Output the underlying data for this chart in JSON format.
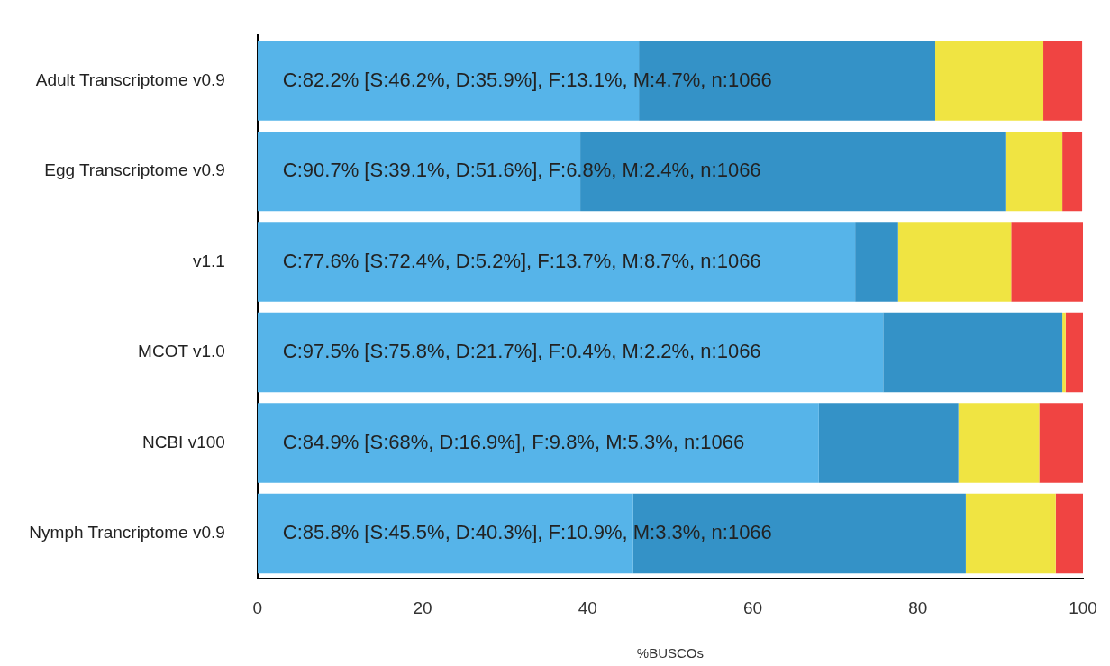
{
  "chart_data": {
    "type": "bar",
    "orientation": "horizontal",
    "stacked": true,
    "xlabel": "%BUSCOs",
    "categories": [
      "Adult Transcriptome v0.9",
      "Egg Transcriptome v0.9",
      "v1.1",
      "MCOT v1.0",
      "NCBI v100",
      "Nymph Trancriptome v0.9"
    ],
    "series": [
      {
        "color": "#56b4e9",
        "values": [
          46.2,
          39.1,
          72.4,
          75.8,
          68,
          45.5
        ]
      },
      {
        "color": "#3492c7",
        "values": [
          35.9,
          51.6,
          5.2,
          21.7,
          16.9,
          40.3
        ]
      },
      {
        "color": "#f0e442",
        "values": [
          13.1,
          6.8,
          13.7,
          0.4,
          9.8,
          10.9
        ]
      },
      {
        "color": "#f04442",
        "values": [
          4.7,
          2.4,
          8.7,
          2.2,
          5.3,
          3.3
        ]
      }
    ],
    "xlim": [
      0,
      100
    ],
    "xticks": [
      0,
      20,
      40,
      60,
      80,
      100
    ],
    "grid": false,
    "legend": false,
    "annotations": [
      {
        "text": "C:82.2% [S:46.2%, D:35.9%], F:13.1%, M:4.7%, n:1066",
        "y": "Adult Transcriptome v0.9"
      },
      {
        "text": "C:90.7% [S:39.1%, D:51.6%], F:6.8%, M:2.4%, n:1066",
        "y": "Egg Transcriptome v0.9"
      },
      {
        "text": "C:77.6% [S:72.4%, D:5.2%], F:13.7%, M:8.7%, n:1066",
        "y": "v1.1"
      },
      {
        "text": "C:97.5% [S:75.8%, D:21.7%], F:0.4%, M:2.2%, n:1066",
        "y": "MCOT v1.0"
      },
      {
        "text": "C:84.9% [S:68%, D:16.9%], F:9.8%, M:5.3%, n:1066",
        "y": "NCBI v100"
      },
      {
        "text": "C:85.8% [S:45.5%, D:40.3%], F:10.9%, M:3.3%, n:1066",
        "y": "Nymph Trancriptome v0.9"
      }
    ]
  }
}
